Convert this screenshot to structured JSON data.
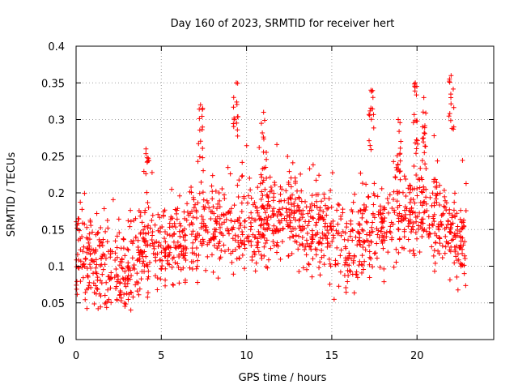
{
  "chart_data": {
    "type": "scatter",
    "title": "Day 160 of 2023, SRMTID for receiver hert",
    "xlabel": "GPS time / hours",
    "ylabel": "SRMTID / TECUs",
    "xlim": [
      0,
      24.5
    ],
    "ylim": [
      0,
      0.4
    ],
    "x_ticks": [
      0,
      5,
      10,
      15,
      20
    ],
    "x_tick_labels": [
      "0",
      "5",
      "10",
      "15",
      "20"
    ],
    "y_ticks": [
      0,
      0.05,
      0.1,
      0.15,
      0.2,
      0.25,
      0.3,
      0.35,
      0.4
    ],
    "y_tick_labels": [
      "0",
      "0.05",
      "0.1",
      "0.15",
      "0.2",
      "0.25",
      "0.3",
      "0.35",
      "0.4"
    ],
    "grid": true,
    "marker": "plus",
    "marker_color": "#ff0000",
    "series_note": "dense per-satellite tracks sampled from visual estimate",
    "trend": [
      {
        "x": 0,
        "y": 0.11
      },
      {
        "x": 1,
        "y": 0.1
      },
      {
        "x": 2,
        "y": 0.09
      },
      {
        "x": 3,
        "y": 0.1
      },
      {
        "x": 4,
        "y": 0.12
      },
      {
        "x": 5,
        "y": 0.12
      },
      {
        "x": 6,
        "y": 0.13
      },
      {
        "x": 7,
        "y": 0.15
      },
      {
        "x": 8,
        "y": 0.15
      },
      {
        "x": 9,
        "y": 0.16
      },
      {
        "x": 10,
        "y": 0.15
      },
      {
        "x": 11,
        "y": 0.16
      },
      {
        "x": 12,
        "y": 0.17
      },
      {
        "x": 13,
        "y": 0.17
      },
      {
        "x": 14,
        "y": 0.15
      },
      {
        "x": 15,
        "y": 0.14
      },
      {
        "x": 16,
        "y": 0.12
      },
      {
        "x": 17,
        "y": 0.15
      },
      {
        "x": 18,
        "y": 0.16
      },
      {
        "x": 19,
        "y": 0.17
      },
      {
        "x": 20,
        "y": 0.18
      },
      {
        "x": 21,
        "y": 0.16
      },
      {
        "x": 22,
        "y": 0.14
      },
      {
        "x": 22.9,
        "y": 0.12
      }
    ],
    "peaks": [
      {
        "x": 4.1,
        "y": 0.26
      },
      {
        "x": 7.3,
        "y": 0.32
      },
      {
        "x": 9.4,
        "y": 0.35
      },
      {
        "x": 11.0,
        "y": 0.31
      },
      {
        "x": 17.3,
        "y": 0.34
      },
      {
        "x": 18.9,
        "y": 0.3
      },
      {
        "x": 19.9,
        "y": 0.35
      },
      {
        "x": 20.4,
        "y": 0.33
      },
      {
        "x": 22.0,
        "y": 0.36
      }
    ],
    "x_range_data": [
      0,
      22.9
    ]
  }
}
